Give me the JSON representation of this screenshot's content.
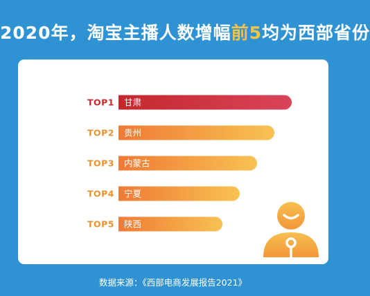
{
  "title": {
    "prefix": "2020年，淘宝主播人数增幅",
    "highlight": "前5",
    "suffix": "均为西部省份"
  },
  "chart_data": {
    "type": "bar",
    "orientation": "horizontal",
    "title": "2020年，淘宝主播人数增幅前5均为西部省份",
    "rank_labels": [
      "TOP1",
      "TOP2",
      "TOP3",
      "TOP4",
      "TOP5"
    ],
    "categories": [
      "甘肃",
      "贵州",
      "内蒙古",
      "宁夏",
      "陕西"
    ],
    "values": [
      5,
      4.5,
      4,
      3.5,
      3
    ],
    "value_unit": "rank order (no values printed)",
    "colors": {
      "top1": [
        "#c4282d",
        "#d9445a"
      ],
      "others": [
        "#ef7a34",
        "#f8c253"
      ],
      "rank_top1": "#c4282d",
      "rank_others": "#e8922e"
    },
    "grid": false
  },
  "source": "数据来源：《西部电商发展报告2021》",
  "avatar_icon": "person-with-microphone-icon"
}
